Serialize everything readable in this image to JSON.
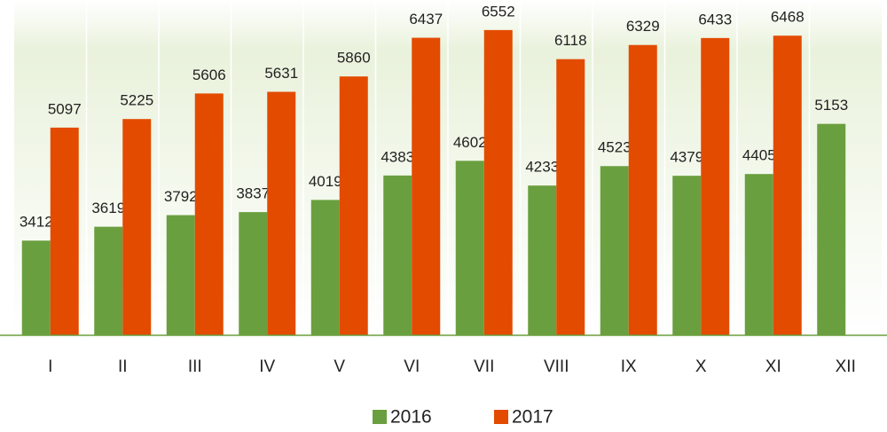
{
  "chart_data": {
    "type": "bar",
    "categories": [
      "I",
      "II",
      "III",
      "IV",
      "V",
      "VI",
      "VII",
      "VIII",
      "IX",
      "X",
      "XI",
      "XII"
    ],
    "series": [
      {
        "name": "2016",
        "color": "#6a9f3f",
        "values": [
          3412,
          3619,
          3792,
          3837,
          4019,
          4383,
          4602,
          4233,
          4523,
          4379,
          4405,
          5153
        ]
      },
      {
        "name": "2017",
        "color": "#e34b00",
        "values": [
          5097,
          5225,
          5606,
          5631,
          5860,
          6437,
          6552,
          6118,
          6329,
          6433,
          6468,
          null
        ]
      }
    ],
    "ylim": [
      2000,
      7000
    ],
    "grid": true,
    "legend": "bottom"
  }
}
